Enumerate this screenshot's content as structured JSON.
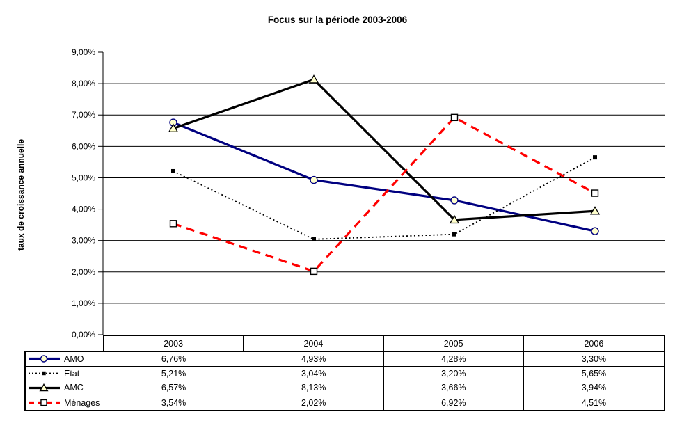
{
  "chart": {
    "title": "Focus sur la période 2003-2006",
    "y_axis_label": "taux de croissance annuelle"
  },
  "chart_data": {
    "type": "line",
    "title": "Focus sur la période 2003-2006",
    "xlabel": "",
    "ylabel": "taux de croissance annuelle",
    "categories": [
      "2003",
      "2004",
      "2005",
      "2006"
    ],
    "ylim": [
      0,
      9
    ],
    "y_tick_step": 1,
    "y_tick_labels": [
      "0,00%",
      "1,00%",
      "2,00%",
      "3,00%",
      "4,00%",
      "5,00%",
      "6,00%",
      "7,00%",
      "8,00%",
      "9,00%"
    ],
    "grid": "horizontal",
    "legend_position": "table-left-column",
    "series": [
      {
        "name": "AMO",
        "values": [
          6.76,
          4.93,
          4.28,
          3.3
        ],
        "labels": [
          "6,76%",
          "4,93%",
          "4,28%",
          "3,30%"
        ],
        "color": "#000080",
        "line_style": "solid",
        "marker": "circle",
        "marker_fill": "#FFFFCC"
      },
      {
        "name": "Etat",
        "values": [
          5.21,
          3.04,
          3.2,
          5.65
        ],
        "labels": [
          "5,21%",
          "3,04%",
          "3,20%",
          "5,65%"
        ],
        "color": "#000000",
        "line_style": "dotted",
        "marker": "square-filled",
        "marker_fill": "#000000"
      },
      {
        "name": "AMC",
        "values": [
          6.57,
          8.13,
          3.66,
          3.94
        ],
        "labels": [
          "6,57%",
          "8,13%",
          "3,66%",
          "3,94%"
        ],
        "color": "#000000",
        "line_style": "solid",
        "marker": "triangle",
        "marker_fill": "#FFFFCC"
      },
      {
        "name": "Ménages",
        "values": [
          3.54,
          2.02,
          6.92,
          4.51
        ],
        "labels": [
          "3,54%",
          "2,02%",
          "6,92%",
          "4,51%"
        ],
        "color": "#FF0000",
        "line_style": "dashed",
        "marker": "square-open",
        "marker_fill": "#FFFFFF"
      }
    ]
  }
}
